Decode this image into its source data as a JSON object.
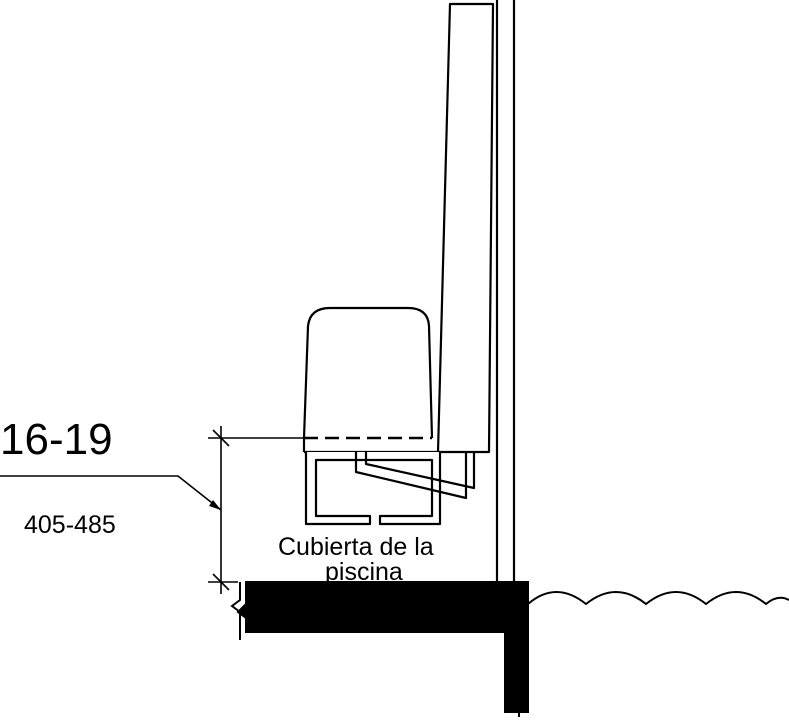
{
  "dimension": {
    "inches": "16-19",
    "millimeters": "405-485"
  },
  "labels": {
    "pool_deck": "Cubierta de la piscina"
  },
  "label_lines": [
    "Cubierta de la",
    "piscina"
  ],
  "colors": {
    "ink": "#000000",
    "background": "#ffffff"
  }
}
